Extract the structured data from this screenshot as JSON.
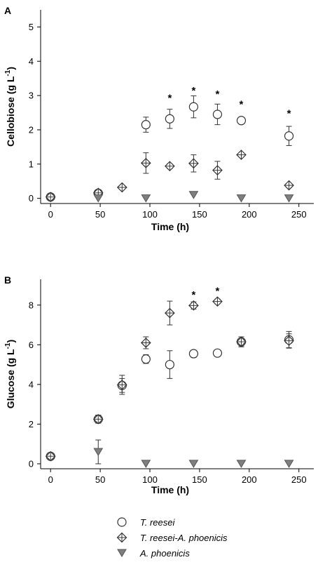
{
  "chart_data": [
    {
      "type": "scatter",
      "panel_label": "A",
      "xlabel": "Time (h)",
      "ylabel_main": "Cellobiose (g L",
      "ylabel_sup": "-1",
      "ylabel_tail": ")",
      "xlim": [
        -10,
        265
      ],
      "ylim": [
        -0.15,
        5.5
      ],
      "xticks": [
        0,
        50,
        100,
        150,
        200,
        250
      ],
      "yticks": [
        0,
        1,
        2,
        3,
        4,
        5
      ],
      "significance": {
        "symbol": "*",
        "x": [
          120,
          144,
          168,
          192,
          240
        ],
        "y": [
          2.95,
          3.17,
          3.06,
          2.77,
          2.5
        ]
      },
      "series": [
        {
          "name": "T. reesei",
          "marker": "circle",
          "points": [
            {
              "x": 0,
              "y": 0.04,
              "err": 0.02
            },
            {
              "x": 48,
              "y": 0.15,
              "err": 0.03
            },
            {
              "x": 96,
              "y": 2.15,
              "err": 0.22
            },
            {
              "x": 120,
              "y": 2.32,
              "err": 0.28
            },
            {
              "x": 144,
              "y": 2.67,
              "err": 0.32
            },
            {
              "x": 168,
              "y": 2.45,
              "err": 0.3
            },
            {
              "x": 192,
              "y": 2.27,
              "err": 0.05
            },
            {
              "x": 240,
              "y": 1.82,
              "err": 0.28
            }
          ]
        },
        {
          "name": "T. reesei-A. phoenicis",
          "marker": "crossed-diamond",
          "points": [
            {
              "x": 0,
              "y": 0.04,
              "err": 0.02
            },
            {
              "x": 48,
              "y": 0.16,
              "err": 0.05
            },
            {
              "x": 72,
              "y": 0.32,
              "err": 0.04
            },
            {
              "x": 96,
              "y": 1.03,
              "err": 0.3
            },
            {
              "x": 120,
              "y": 0.94,
              "err": 0.07
            },
            {
              "x": 144,
              "y": 1.02,
              "err": 0.25
            },
            {
              "x": 168,
              "y": 0.82,
              "err": 0.26
            },
            {
              "x": 192,
              "y": 1.27,
              "err": 0.06
            },
            {
              "x": 240,
              "y": 0.38,
              "err": 0.05
            }
          ]
        },
        {
          "name": "A. phoenicis",
          "marker": "triangle-down",
          "points": [
            {
              "x": 48,
              "y": 0.0,
              "err": 0
            },
            {
              "x": 96,
              "y": 0.0,
              "err": 0
            },
            {
              "x": 144,
              "y": 0.1,
              "err": 0
            },
            {
              "x": 192,
              "y": 0.0,
              "err": 0
            },
            {
              "x": 240,
              "y": 0.0,
              "err": 0
            }
          ]
        }
      ]
    },
    {
      "type": "scatter",
      "panel_label": "B",
      "xlabel": "Time (h)",
      "ylabel_main": "Glucose (g L",
      "ylabel_sup": "-1",
      "ylabel_tail": ")",
      "xlim": [
        -10,
        265
      ],
      "ylim": [
        -0.25,
        9.3
      ],
      "xticks": [
        0,
        50,
        100,
        150,
        200,
        250
      ],
      "yticks": [
        0,
        2,
        4,
        6,
        8
      ],
      "significance": {
        "symbol": "*",
        "x": [
          144,
          168
        ],
        "y": [
          8.55,
          8.75
        ]
      },
      "series": [
        {
          "name": "T. reesei",
          "marker": "circle",
          "points": [
            {
              "x": 0,
              "y": 0.38,
              "err": 0.1
            },
            {
              "x": 48,
              "y": 2.25,
              "err": 0.2
            },
            {
              "x": 72,
              "y": 3.95,
              "err": 0.35
            },
            {
              "x": 96,
              "y": 5.28,
              "err": 0.22
            },
            {
              "x": 120,
              "y": 5.0,
              "err": 0.7
            },
            {
              "x": 144,
              "y": 5.55,
              "err": 0.18
            },
            {
              "x": 168,
              "y": 5.58,
              "err": 0.15
            },
            {
              "x": 192,
              "y": 6.15,
              "err": 0.25
            },
            {
              "x": 240,
              "y": 6.25,
              "err": 0.42
            }
          ]
        },
        {
          "name": "T. reesei-A. phoenicis",
          "marker": "crossed-diamond",
          "points": [
            {
              "x": 0,
              "y": 0.38,
              "err": 0.1
            },
            {
              "x": 48,
              "y": 2.25,
              "err": 0.2
            },
            {
              "x": 72,
              "y": 3.98,
              "err": 0.48
            },
            {
              "x": 96,
              "y": 6.1,
              "err": 0.3
            },
            {
              "x": 120,
              "y": 7.6,
              "err": 0.6
            },
            {
              "x": 144,
              "y": 7.98,
              "err": 0.18
            },
            {
              "x": 168,
              "y": 8.18,
              "err": 0.12
            },
            {
              "x": 192,
              "y": 6.15,
              "err": 0.25
            },
            {
              "x": 240,
              "y": 6.2,
              "err": 0.35
            }
          ]
        },
        {
          "name": "A. phoenicis",
          "marker": "triangle-down",
          "points": [
            {
              "x": 48,
              "y": 0.6,
              "err": 0.6
            },
            {
              "x": 96,
              "y": 0.0,
              "err": 0
            },
            {
              "x": 144,
              "y": 0.0,
              "err": 0
            },
            {
              "x": 192,
              "y": 0.0,
              "err": 0
            },
            {
              "x": 240,
              "y": 0.0,
              "err": 0
            }
          ]
        }
      ]
    }
  ],
  "legend": {
    "placement": "bottom-center",
    "items": [
      {
        "label": "T. reesei",
        "marker": "circle"
      },
      {
        "label": "T. reesei-A. phoenicis",
        "marker": "crossed-diamond"
      },
      {
        "label": "A. phoenicis",
        "marker": "triangle-down"
      }
    ]
  },
  "colors": {
    "marker_edge": "#333333",
    "triangle_fill": "#7f7f7f",
    "open_fill": "#ffffff",
    "axis": "#000000"
  }
}
